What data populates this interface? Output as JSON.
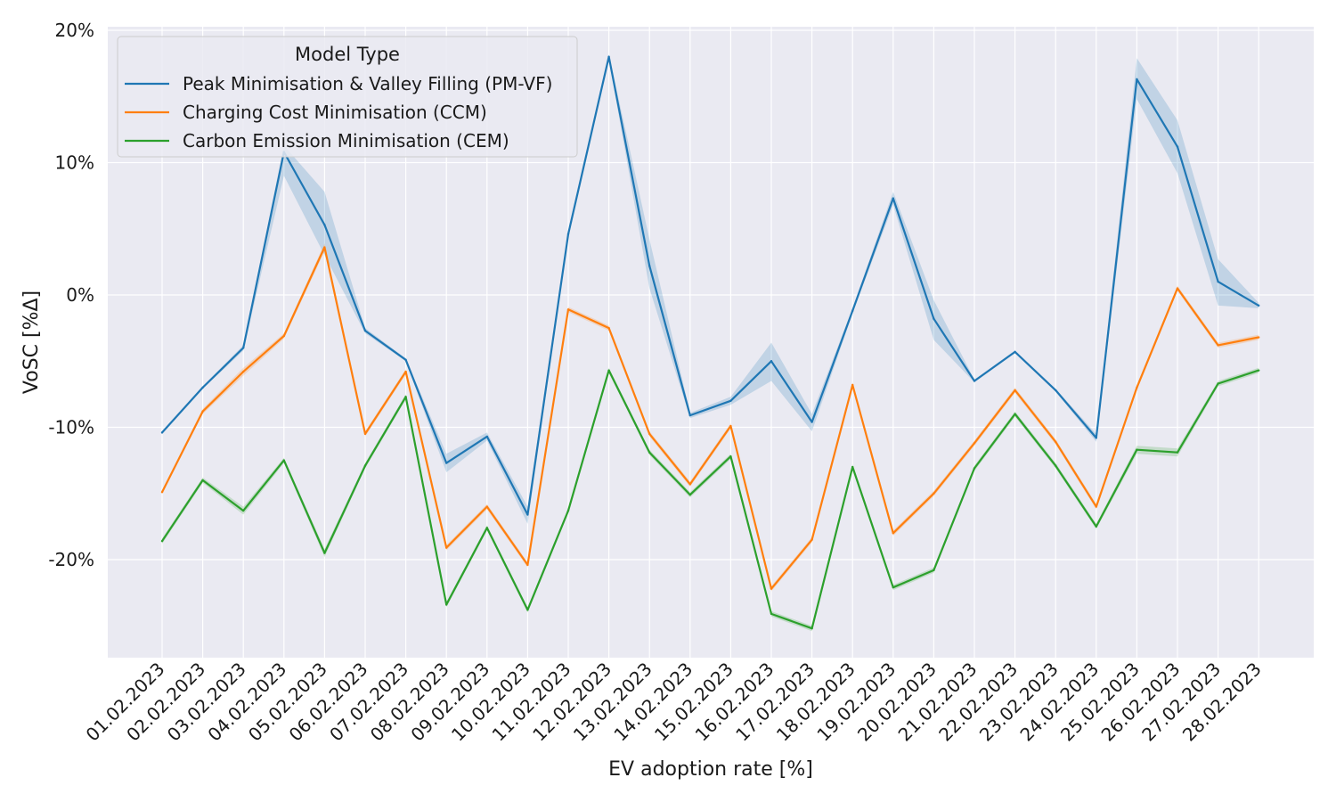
{
  "chart_data": {
    "type": "line",
    "xlabel": "EV adoption rate [%]",
    "ylabel": "VoSC [%Δ]",
    "ylim": [
      -27,
      20
    ],
    "yticks": [
      20,
      10,
      0,
      -10,
      -20
    ],
    "ytick_labels": [
      "20%",
      "10%",
      "0%",
      "-10%",
      "-20%"
    ],
    "grid": true,
    "x": [
      "01.02.2023",
      "02.02.2023",
      "03.02.2023",
      "04.02.2023",
      "05.02.2023",
      "06.02.2023",
      "07.02.2023",
      "08.02.2023",
      "09.02.2023",
      "10.02.2023",
      "11.02.2023",
      "12.02.2023",
      "13.02.2023",
      "14.02.2023",
      "15.02.2023",
      "16.02.2023",
      "17.02.2023",
      "18.02.2023",
      "19.02.2023",
      "20.02.2023",
      "21.02.2023",
      "22.02.2023",
      "23.02.2023",
      "24.02.2023",
      "25.02.2023",
      "26.02.2023",
      "27.02.2023",
      "28.02.2023"
    ],
    "legend": {
      "title": "Model Type",
      "position": "top-left"
    },
    "series": [
      {
        "name": "Peak Minimisation & Valley Filling (PM-VF)",
        "color": "#1f77b4",
        "values": [
          -10.4,
          -7.0,
          -4.0,
          10.8,
          5.3,
          -2.7,
          -4.9,
          -12.7,
          -10.7,
          -16.6,
          4.6,
          18.0,
          2.2,
          -9.1,
          -8.0,
          -5.0,
          -9.6,
          -1.2,
          7.3,
          -1.8,
          -6.5,
          -4.3,
          -7.2,
          -10.8,
          16.3,
          11.2,
          1.0,
          -0.8
        ],
        "ci_low": [
          -10.5,
          -7.1,
          -4.2,
          9.0,
          3.0,
          -2.9,
          -5.0,
          -13.4,
          -11.0,
          -17.3,
          4.3,
          17.8,
          0.5,
          -9.3,
          -8.3,
          -6.5,
          -10.3,
          -1.4,
          6.8,
          -3.4,
          -6.6,
          -4.4,
          -7.3,
          -11.1,
          14.8,
          9.2,
          -0.8,
          -1.0
        ],
        "ci_high": [
          -10.3,
          -6.9,
          -3.8,
          11.3,
          7.8,
          -2.5,
          -4.8,
          -12.0,
          -10.4,
          -16.0,
          4.9,
          18.2,
          4.2,
          -8.9,
          -7.7,
          -3.6,
          -9.0,
          -1.0,
          7.8,
          -0.4,
          -6.4,
          -4.2,
          -7.1,
          -10.5,
          17.9,
          13.2,
          2.7,
          -0.6
        ]
      },
      {
        "name": "Charging Cost Minimisation (CCM)",
        "color": "#ff7f0e",
        "values": [
          -14.9,
          -8.8,
          -5.8,
          -3.1,
          3.6,
          -10.5,
          -5.8,
          -19.1,
          -16.0,
          -20.4,
          -1.1,
          -2.5,
          -10.5,
          -14.3,
          -9.9,
          -22.2,
          -18.5,
          -6.8,
          -18.0,
          -15.0,
          -11.2,
          -7.2,
          -11.1,
          -16.0,
          -7.0,
          0.5,
          -3.8,
          -3.2
        ],
        "ci_low": [
          -15.0,
          -9.0,
          -6.1,
          -3.3,
          3.3,
          -10.7,
          -6.0,
          -19.3,
          -16.2,
          -20.6,
          -1.3,
          -2.7,
          -10.7,
          -14.5,
          -10.1,
          -22.4,
          -18.7,
          -7.0,
          -18.2,
          -15.2,
          -11.4,
          -7.4,
          -11.3,
          -16.2,
          -7.2,
          0.3,
          -4.0,
          -3.4
        ],
        "ci_high": [
          -14.8,
          -8.6,
          -5.5,
          -2.9,
          3.9,
          -10.3,
          -5.6,
          -18.9,
          -15.8,
          -20.2,
          -0.9,
          -2.3,
          -10.3,
          -14.1,
          -9.7,
          -22.0,
          -18.3,
          -6.6,
          -17.8,
          -14.8,
          -11.0,
          -7.0,
          -10.9,
          -15.8,
          -6.8,
          0.7,
          -3.6,
          -3.0
        ]
      },
      {
        "name": "Carbon Emission Minimisation (CEM)",
        "color": "#2ca02c",
        "values": [
          -18.6,
          -14.0,
          -16.3,
          -12.5,
          -19.5,
          -12.9,
          -7.7,
          -23.4,
          -17.6,
          -23.8,
          -16.3,
          -5.7,
          -11.9,
          -15.1,
          -12.2,
          -24.1,
          -25.2,
          -13.0,
          -22.1,
          -20.8,
          -13.1,
          -9.0,
          -12.9,
          -17.5,
          -11.7,
          -11.9,
          -6.7,
          -5.7
        ],
        "ci_low": [
          -18.8,
          -14.2,
          -16.6,
          -12.7,
          -19.8,
          -13.1,
          -7.9,
          -23.6,
          -17.8,
          -24.0,
          -16.5,
          -5.9,
          -12.1,
          -15.3,
          -12.4,
          -24.3,
          -25.4,
          -13.2,
          -22.3,
          -21.0,
          -13.3,
          -9.2,
          -13.1,
          -17.7,
          -12.0,
          -12.2,
          -6.9,
          -5.9
        ],
        "ci_high": [
          -18.4,
          -13.8,
          -16.0,
          -12.3,
          -19.2,
          -12.7,
          -7.5,
          -23.2,
          -17.4,
          -23.6,
          -16.1,
          -5.5,
          -11.7,
          -14.9,
          -12.0,
          -23.9,
          -25.0,
          -12.8,
          -21.9,
          -20.6,
          -12.9,
          -8.8,
          -12.7,
          -17.3,
          -11.4,
          -11.6,
          -6.5,
          -5.5
        ]
      }
    ]
  }
}
